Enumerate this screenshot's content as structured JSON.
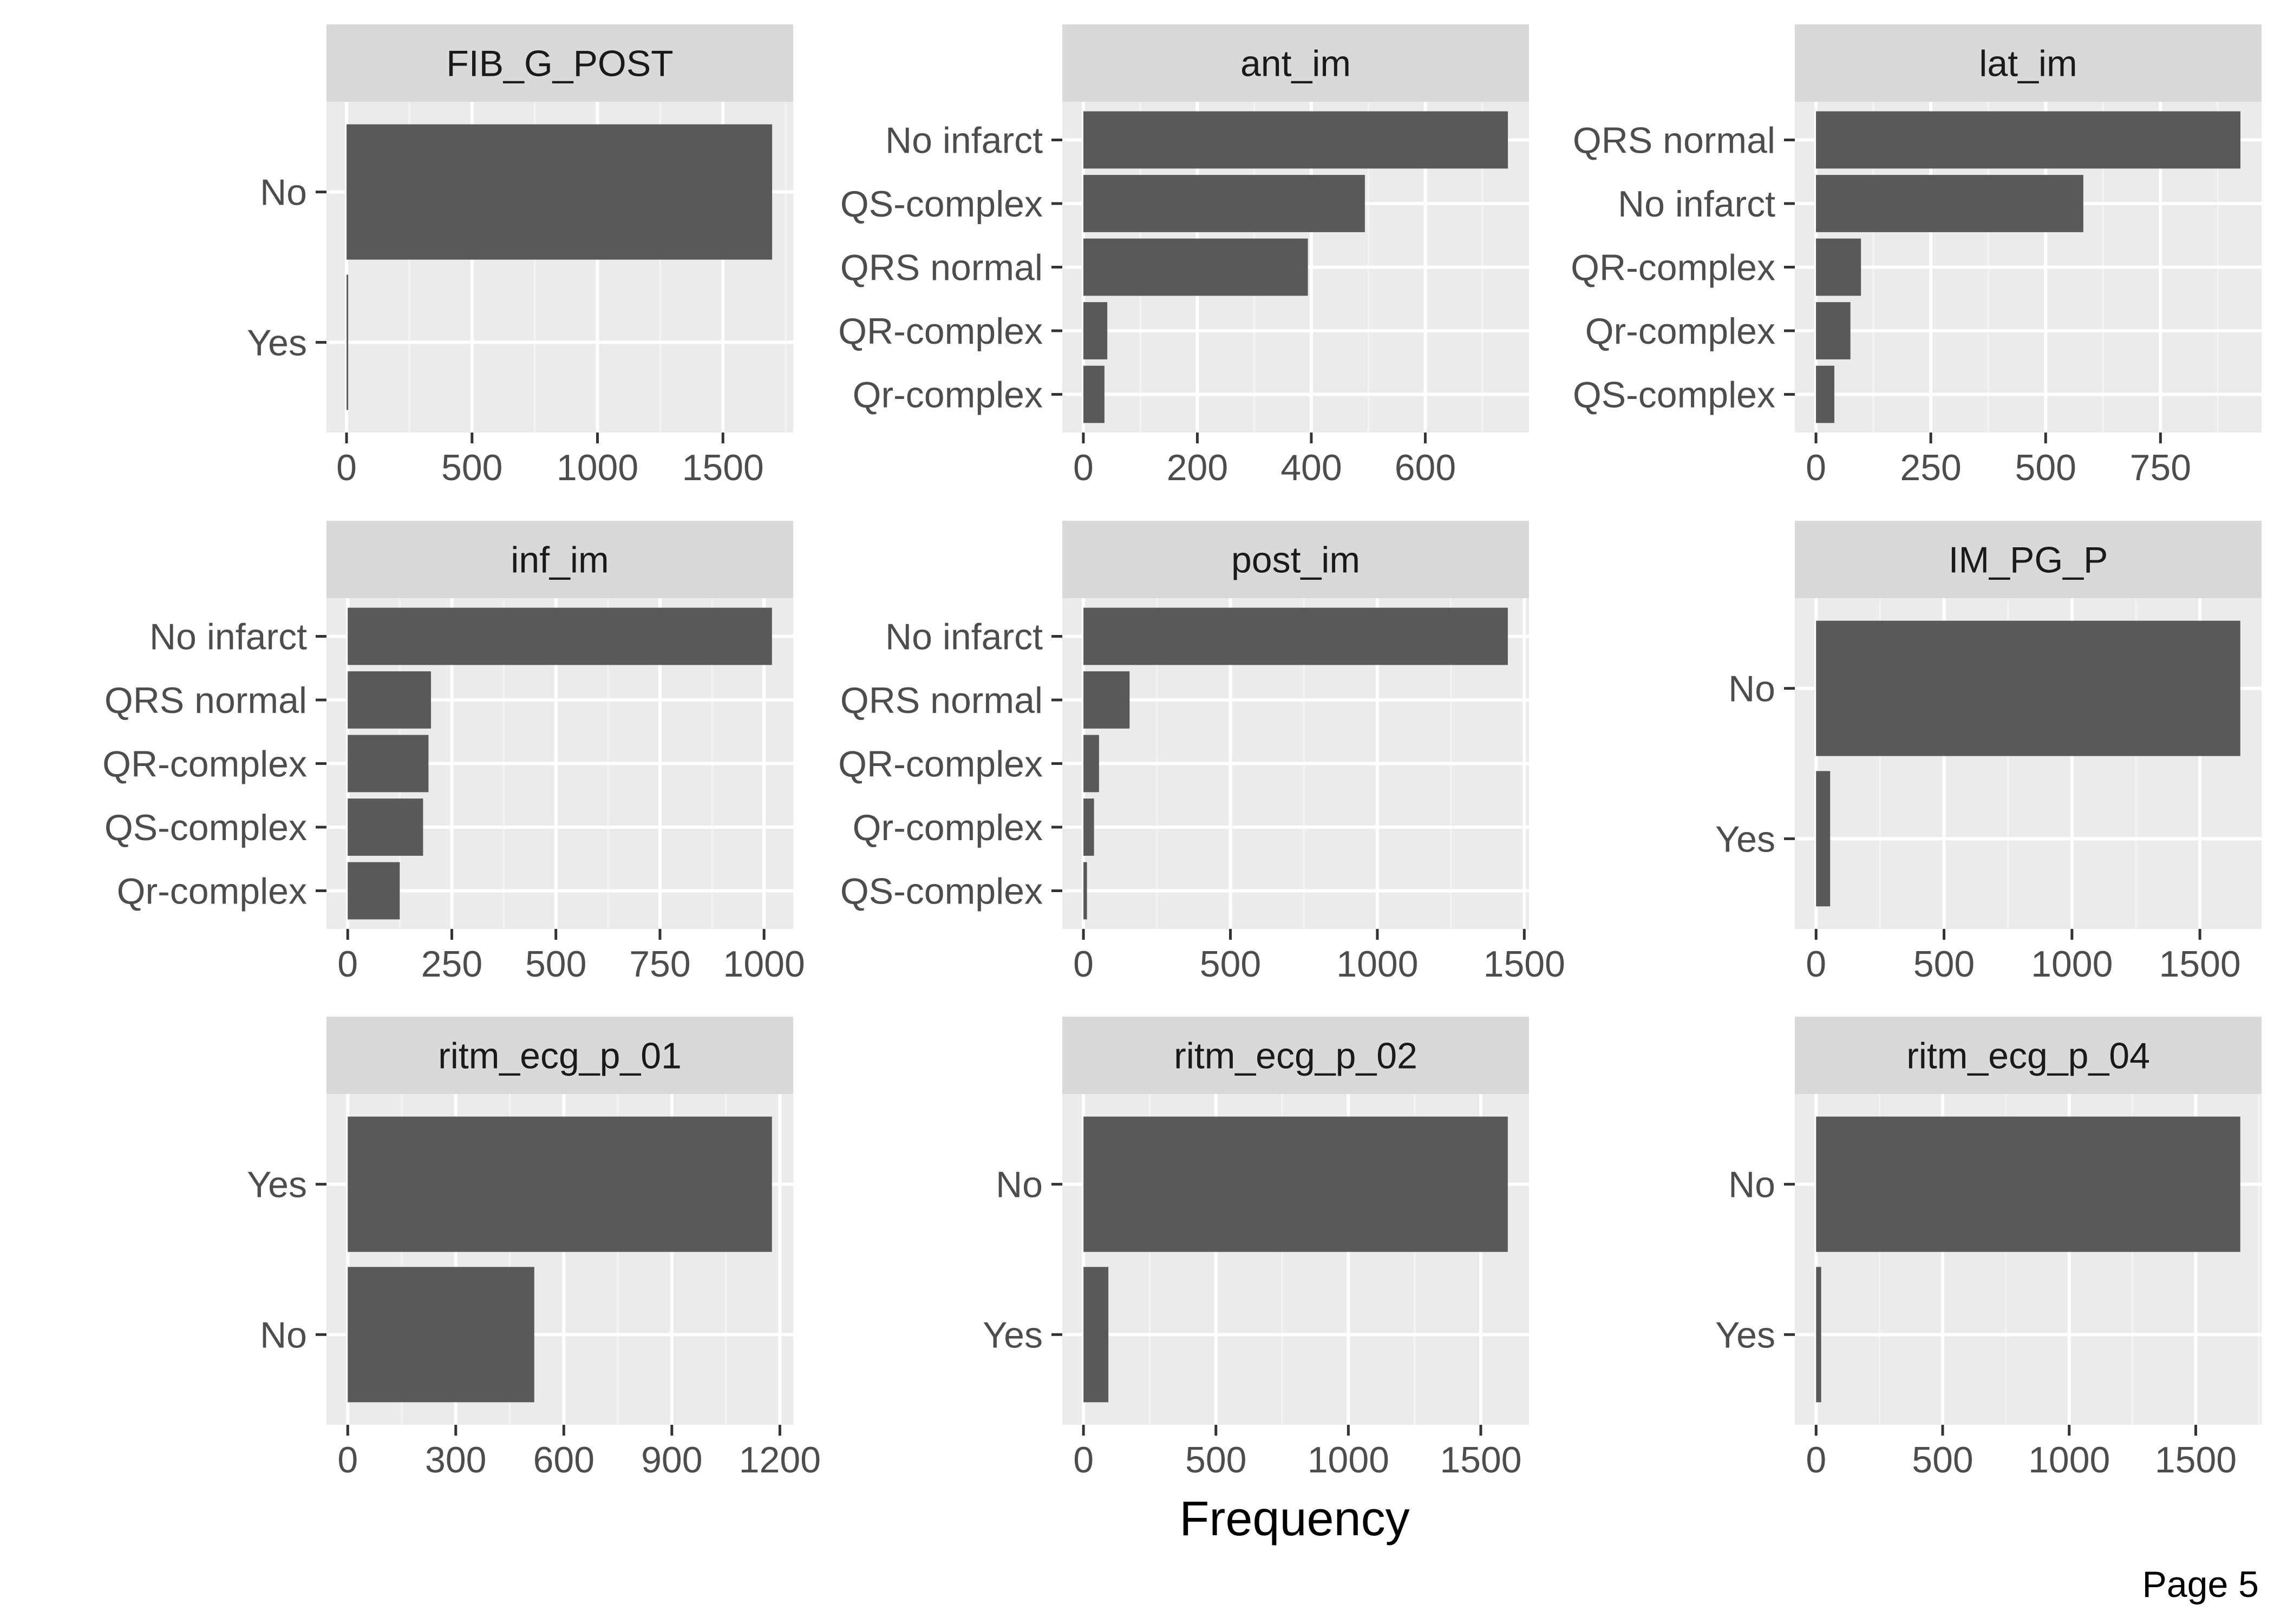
{
  "figure": {
    "x_axis_title": "Frequency",
    "page_label": "Page 5"
  },
  "colors": {
    "bar": "#595959",
    "panel_background": "#ebebeb",
    "strip_background": "#d9d9d9",
    "grid_major": "#ffffff",
    "grid_minor": "#f4f4f4",
    "tick": "#333333"
  },
  "chart_data": [
    {
      "type": "bar",
      "orientation": "horizontal",
      "title": "FIB_G_POST",
      "categories": [
        "No",
        "Yes"
      ],
      "values": [
        1696,
        4
      ],
      "xlim": [
        -80,
        1780
      ],
      "xticks": [
        0,
        500,
        1000,
        1500
      ],
      "xlabel": "Frequency"
    },
    {
      "type": "bar",
      "orientation": "horizontal",
      "title": "ant_im",
      "categories": [
        "No infarct",
        "QS-complex",
        "QRS normal",
        "QR-complex",
        "Qr-complex"
      ],
      "values": [
        745,
        494,
        394,
        42,
        37
      ],
      "xlim": [
        -37,
        782
      ],
      "xticks": [
        0,
        200,
        400,
        600
      ],
      "xlabel": "Frequency"
    },
    {
      "type": "bar",
      "orientation": "horizontal",
      "title": "lat_im",
      "categories": [
        "QRS normal",
        "No infarct",
        "QR-complex",
        "Qr-complex",
        "QS-complex"
      ],
      "values": [
        924,
        582,
        98,
        75,
        40
      ],
      "xlim": [
        -46,
        970
      ],
      "xticks": [
        0,
        250,
        500,
        750
      ],
      "xlabel": "Frequency"
    },
    {
      "type": "bar",
      "orientation": "horizontal",
      "title": "inf_im",
      "categories": [
        "No infarct",
        "QRS normal",
        "QR-complex",
        "QS-complex",
        "Qr-complex"
      ],
      "values": [
        1019,
        200,
        194,
        181,
        125
      ],
      "xlim": [
        -51,
        1070
      ],
      "xticks": [
        0,
        250,
        500,
        750,
        1000
      ],
      "xlabel": "Frequency"
    },
    {
      "type": "bar",
      "orientation": "horizontal",
      "title": "post_im",
      "categories": [
        "No infarct",
        "QRS normal",
        "QR-complex",
        "Qr-complex",
        "QS-complex"
      ],
      "values": [
        1444,
        157,
        53,
        36,
        12
      ],
      "xlim": [
        -72,
        1516
      ],
      "xticks": [
        0,
        500,
        1000,
        1500
      ],
      "xlabel": "Frequency"
    },
    {
      "type": "bar",
      "orientation": "horizontal",
      "title": "IM_PG_P",
      "categories": [
        "No",
        "Yes"
      ],
      "values": [
        1658,
        55
      ],
      "xlim": [
        -83,
        1741
      ],
      "xticks": [
        0,
        500,
        1000,
        1500
      ],
      "xlabel": "Frequency"
    },
    {
      "type": "bar",
      "orientation": "horizontal",
      "title": "ritm_ecg_p_01",
      "categories": [
        "Yes",
        "No"
      ],
      "values": [
        1178,
        518
      ],
      "xlim": [
        -59,
        1237
      ],
      "xticks": [
        0,
        300,
        600,
        900,
        1200
      ],
      "xlabel": "Frequency"
    },
    {
      "type": "bar",
      "orientation": "horizontal",
      "title": "ritm_ecg_p_02",
      "categories": [
        "No",
        "Yes"
      ],
      "values": [
        1602,
        94
      ],
      "xlim": [
        -80,
        1682
      ],
      "xticks": [
        0,
        500,
        1000,
        1500
      ],
      "xlabel": "Frequency"
    },
    {
      "type": "bar",
      "orientation": "horizontal",
      "title": "ritm_ecg_p_04",
      "categories": [
        "No",
        "Yes"
      ],
      "values": [
        1676,
        20
      ],
      "xlim": [
        -84,
        1760
      ],
      "xticks": [
        0,
        500,
        1000,
        1500
      ],
      "xlabel": "Frequency"
    }
  ]
}
